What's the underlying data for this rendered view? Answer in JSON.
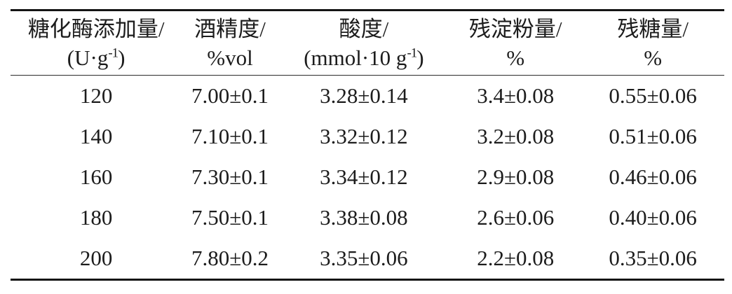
{
  "table": {
    "columns": [
      {
        "line1": "糖化酶添加量/",
        "line2a": "(U·g",
        "sup": "-1",
        "line2b": ")"
      },
      {
        "line1": "酒精度/",
        "line2a": "%vol",
        "sup": "",
        "line2b": ""
      },
      {
        "line1": "酸度/",
        "line2a": "(mmol·10 g",
        "sup": "-1",
        "line2b": ")"
      },
      {
        "line1": "残淀粉量/",
        "line2a": "%",
        "sup": "",
        "line2b": ""
      },
      {
        "line1": "残糖量/",
        "line2a": "%",
        "sup": "",
        "line2b": ""
      }
    ],
    "rows": [
      [
        "120",
        "7.00±0.1",
        "3.28±0.14",
        "3.4±0.08",
        "0.55±0.06"
      ],
      [
        "140",
        "7.10±0.1",
        "3.32±0.12",
        "3.2±0.08",
        "0.51±0.06"
      ],
      [
        "160",
        "7.30±0.1",
        "3.34±0.12",
        "2.9±0.08",
        "0.46±0.06"
      ],
      [
        "180",
        "7.50±0.1",
        "3.38±0.08",
        "2.6±0.06",
        "0.40±0.06"
      ],
      [
        "200",
        "7.80±0.2",
        "3.35±0.06",
        "2.2±0.08",
        "0.35±0.06"
      ]
    ]
  },
  "chart_data": {
    "type": "table",
    "columns": [
      "糖化酶添加量/(U·g-1)",
      "酒精度/%vol",
      "酸度/(mmol·10 g-1)",
      "残淀粉量/%",
      "残糖量/%"
    ],
    "rows": [
      [
        "120",
        "7.00±0.1",
        "3.28±0.14",
        "3.4±0.08",
        "0.55±0.06"
      ],
      [
        "140",
        "7.10±0.1",
        "3.32±0.12",
        "3.2±0.08",
        "0.51±0.06"
      ],
      [
        "160",
        "7.30±0.1",
        "3.34±0.12",
        "2.9±0.08",
        "0.46±0.06"
      ],
      [
        "180",
        "7.50±0.1",
        "3.38±0.08",
        "2.6±0.06",
        "0.40±0.06"
      ],
      [
        "200",
        "7.80±0.2",
        "3.35±0.06",
        "2.2±0.08",
        "0.35±0.06"
      ]
    ]
  },
  "colors": {
    "text": "#1c1c1c",
    "rule_thick": "#141414",
    "rule_thin": "#2b2b2b",
    "background": "#ffffff"
  }
}
